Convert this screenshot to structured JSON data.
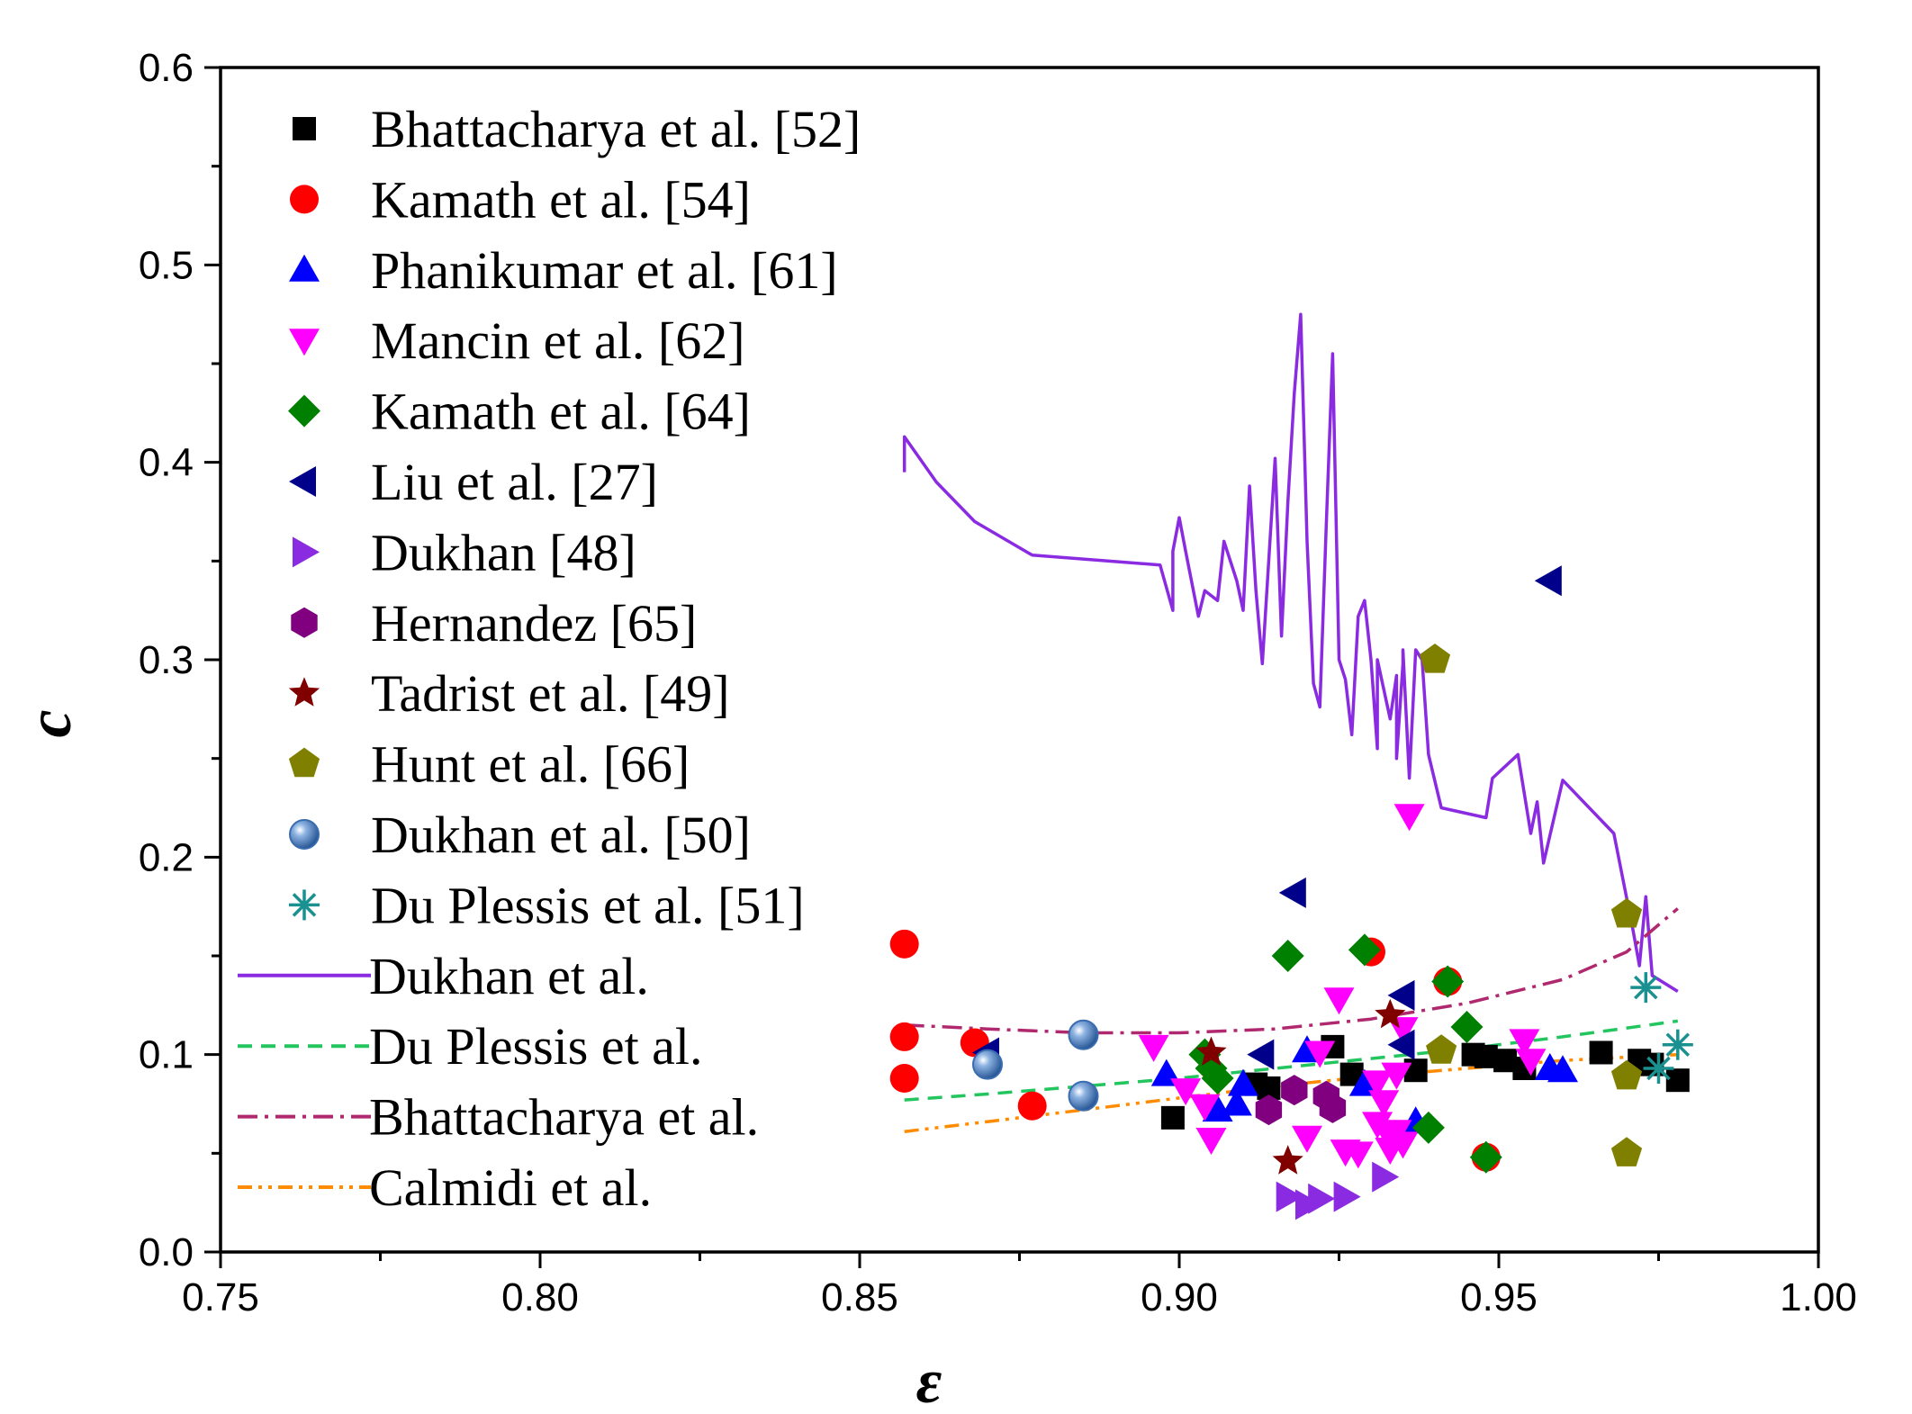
{
  "chart_data": {
    "type": "scatter",
    "title": "",
    "xlabel": "ε",
    "ylabel": "c",
    "xlim": [
      0.75,
      1.0
    ],
    "ylim": [
      0.0,
      0.6
    ],
    "xticks": [
      "0.75",
      "0.80",
      "0.85",
      "0.90",
      "0.95",
      "1.00"
    ],
    "yticks": [
      "0.0",
      "0.1",
      "0.2",
      "0.3",
      "0.4",
      "0.5",
      "0.6"
    ],
    "legend_position": "top-left",
    "scatter_series": [
      {
        "name": "Bhattacharya et al. [52]",
        "marker": "square",
        "color": "#000000",
        "points": [
          [
            0.899,
            0.068
          ],
          [
            0.912,
            0.085
          ],
          [
            0.914,
            0.083
          ],
          [
            0.924,
            0.104
          ],
          [
            0.927,
            0.09
          ],
          [
            0.937,
            0.092
          ],
          [
            0.946,
            0.1
          ],
          [
            0.948,
            0.099
          ],
          [
            0.951,
            0.097
          ],
          [
            0.954,
            0.093
          ],
          [
            0.966,
            0.101
          ],
          [
            0.972,
            0.097
          ],
          [
            0.974,
            0.095
          ],
          [
            0.978,
            0.087
          ]
        ]
      },
      {
        "name": "Kamath et al. [54]",
        "marker": "circle",
        "color": "#ff0000",
        "points": [
          [
            0.857,
            0.156
          ],
          [
            0.857,
            0.109
          ],
          [
            0.857,
            0.088
          ],
          [
            0.868,
            0.106
          ],
          [
            0.877,
            0.074
          ],
          [
            0.93,
            0.152
          ],
          [
            0.942,
            0.137
          ],
          [
            0.948,
            0.048
          ]
        ]
      },
      {
        "name": "Phanikumar et al. [61]",
        "marker": "triangle-up",
        "color": "#0000ff",
        "points": [
          [
            0.898,
            0.09
          ],
          [
            0.906,
            0.072
          ],
          [
            0.909,
            0.075
          ],
          [
            0.91,
            0.085
          ],
          [
            0.92,
            0.102
          ],
          [
            0.929,
            0.085
          ],
          [
            0.937,
            0.066
          ],
          [
            0.958,
            0.093
          ],
          [
            0.96,
            0.092
          ]
        ]
      },
      {
        "name": "Mancin et al. [62]",
        "marker": "triangle-down",
        "color": "#ff00ff",
        "points": [
          [
            0.896,
            0.104
          ],
          [
            0.901,
            0.082
          ],
          [
            0.904,
            0.074
          ],
          [
            0.905,
            0.057
          ],
          [
            0.92,
            0.058
          ],
          [
            0.922,
            0.101
          ],
          [
            0.925,
            0.128
          ],
          [
            0.926,
            0.051
          ],
          [
            0.928,
            0.05
          ],
          [
            0.931,
            0.086
          ],
          [
            0.931,
            0.065
          ],
          [
            0.932,
            0.076
          ],
          [
            0.933,
            0.058
          ],
          [
            0.933,
            0.052
          ],
          [
            0.934,
            0.09
          ],
          [
            0.934,
            0.061
          ],
          [
            0.935,
            0.055
          ],
          [
            0.935,
            0.113
          ],
          [
            0.936,
            0.221
          ],
          [
            0.954,
            0.107
          ],
          [
            0.955,
            0.097
          ]
        ]
      },
      {
        "name": "Kamath et al. [64]",
        "marker": "diamond",
        "color": "#008000",
        "points": [
          [
            0.904,
            0.1
          ],
          [
            0.905,
            0.093
          ],
          [
            0.906,
            0.088
          ],
          [
            0.917,
            0.15
          ],
          [
            0.929,
            0.153
          ],
          [
            0.939,
            0.063
          ],
          [
            0.942,
            0.137
          ],
          [
            0.945,
            0.114
          ],
          [
            0.948,
            0.048
          ]
        ]
      },
      {
        "name": "Liu et al. [27]",
        "marker": "triangle-left",
        "color": "#00008b",
        "points": [
          [
            0.87,
            0.101
          ],
          [
            0.913,
            0.1
          ],
          [
            0.918,
            0.182
          ],
          [
            0.935,
            0.13
          ],
          [
            0.935,
            0.105
          ],
          [
            0.958,
            0.34
          ]
        ]
      },
      {
        "name": "Dukhan [48]",
        "marker": "triangle-right",
        "color": "#8a2be2",
        "points": [
          [
            0.917,
            0.028
          ],
          [
            0.92,
            0.024
          ],
          [
            0.922,
            0.027
          ],
          [
            0.926,
            0.028
          ],
          [
            0.932,
            0.038
          ]
        ]
      },
      {
        "name": "Hernandez [65]",
        "marker": "hexagon",
        "color": "#800080",
        "points": [
          [
            0.914,
            0.072
          ],
          [
            0.918,
            0.082
          ],
          [
            0.923,
            0.079
          ],
          [
            0.924,
            0.073
          ]
        ]
      },
      {
        "name": "Tadrist et al. [49]",
        "marker": "star",
        "color": "#800000",
        "points": [
          [
            0.905,
            0.101
          ],
          [
            0.917,
            0.046
          ],
          [
            0.933,
            0.12
          ]
        ]
      },
      {
        "name": "Hunt et al. [66]",
        "marker": "pentagon",
        "color": "#808000",
        "points": [
          [
            0.94,
            0.3
          ],
          [
            0.941,
            0.102
          ],
          [
            0.97,
            0.171
          ],
          [
            0.97,
            0.089
          ],
          [
            0.97,
            0.05
          ]
        ]
      },
      {
        "name": "Dukhan et al. [50]",
        "marker": "sphere",
        "color": "#3a6cb0",
        "points": [
          [
            0.87,
            0.095
          ],
          [
            0.885,
            0.11
          ],
          [
            0.885,
            0.079
          ]
        ]
      },
      {
        "name": "Du Plessis et al. [51]",
        "marker": "asterisk",
        "color": "#1a9090",
        "points": [
          [
            0.973,
            0.134
          ],
          [
            0.975,
            0.093
          ],
          [
            0.978,
            0.105
          ]
        ]
      }
    ],
    "line_series": [
      {
        "name": "Dukhan et al.",
        "style": "solid",
        "color": "#8a2be2",
        "points": [
          [
            0.857,
            0.395
          ],
          [
            0.857,
            0.413
          ],
          [
            0.862,
            0.39
          ],
          [
            0.868,
            0.37
          ],
          [
            0.877,
            0.353
          ],
          [
            0.897,
            0.348
          ],
          [
            0.899,
            0.325
          ],
          [
            0.899,
            0.355
          ],
          [
            0.9,
            0.372
          ],
          [
            0.901,
            0.355
          ],
          [
            0.903,
            0.322
          ],
          [
            0.904,
            0.335
          ],
          [
            0.906,
            0.33
          ],
          [
            0.907,
            0.36
          ],
          [
            0.909,
            0.34
          ],
          [
            0.91,
            0.325
          ],
          [
            0.911,
            0.388
          ],
          [
            0.912,
            0.335
          ],
          [
            0.913,
            0.298
          ],
          [
            0.914,
            0.35
          ],
          [
            0.915,
            0.402
          ],
          [
            0.916,
            0.312
          ],
          [
            0.917,
            0.38
          ],
          [
            0.918,
            0.435
          ],
          [
            0.919,
            0.475
          ],
          [
            0.92,
            0.36
          ],
          [
            0.921,
            0.288
          ],
          [
            0.922,
            0.276
          ],
          [
            0.923,
            0.368
          ],
          [
            0.924,
            0.455
          ],
          [
            0.925,
            0.3
          ],
          [
            0.926,
            0.29
          ],
          [
            0.927,
            0.262
          ],
          [
            0.928,
            0.322
          ],
          [
            0.929,
            0.33
          ],
          [
            0.93,
            0.3
          ],
          [
            0.931,
            0.255
          ],
          [
            0.931,
            0.3
          ],
          [
            0.932,
            0.285
          ],
          [
            0.933,
            0.27
          ],
          [
            0.934,
            0.292
          ],
          [
            0.934,
            0.25
          ],
          [
            0.935,
            0.298
          ],
          [
            0.935,
            0.305
          ],
          [
            0.936,
            0.24
          ],
          [
            0.937,
            0.305
          ],
          [
            0.938,
            0.3
          ],
          [
            0.939,
            0.252
          ],
          [
            0.941,
            0.225
          ],
          [
            0.948,
            0.22
          ],
          [
            0.949,
            0.24
          ],
          [
            0.953,
            0.252
          ],
          [
            0.955,
            0.212
          ],
          [
            0.956,
            0.228
          ],
          [
            0.957,
            0.197
          ],
          [
            0.96,
            0.239
          ],
          [
            0.968,
            0.212
          ],
          [
            0.971,
            0.163
          ],
          [
            0.972,
            0.145
          ],
          [
            0.973,
            0.18
          ],
          [
            0.974,
            0.14
          ],
          [
            0.978,
            0.132
          ]
        ]
      },
      {
        "name": "Du Plessis et al.",
        "style": "dashed",
        "color": "#22c55e",
        "points": [
          [
            0.857,
            0.077
          ],
          [
            0.87,
            0.08
          ],
          [
            0.885,
            0.084
          ],
          [
            0.9,
            0.088
          ],
          [
            0.915,
            0.093
          ],
          [
            0.93,
            0.098
          ],
          [
            0.945,
            0.103
          ],
          [
            0.96,
            0.109
          ],
          [
            0.978,
            0.117
          ]
        ]
      },
      {
        "name": "Bhattacharya et al.",
        "style": "dashdot",
        "color": "#b0286e",
        "points": [
          [
            0.857,
            0.115
          ],
          [
            0.87,
            0.113
          ],
          [
            0.885,
            0.111
          ],
          [
            0.9,
            0.111
          ],
          [
            0.915,
            0.113
          ],
          [
            0.93,
            0.118
          ],
          [
            0.945,
            0.126
          ],
          [
            0.96,
            0.138
          ],
          [
            0.97,
            0.152
          ],
          [
            0.978,
            0.174
          ]
        ]
      },
      {
        "name": "Calmidi et al.",
        "style": "dashdotdot",
        "color": "#ff8c00",
        "points": [
          [
            0.857,
            0.061
          ],
          [
            0.87,
            0.066
          ],
          [
            0.885,
            0.072
          ],
          [
            0.9,
            0.078
          ],
          [
            0.915,
            0.084
          ],
          [
            0.93,
            0.089
          ],
          [
            0.945,
            0.093
          ],
          [
            0.96,
            0.097
          ],
          [
            0.978,
            0.1
          ]
        ]
      }
    ]
  }
}
